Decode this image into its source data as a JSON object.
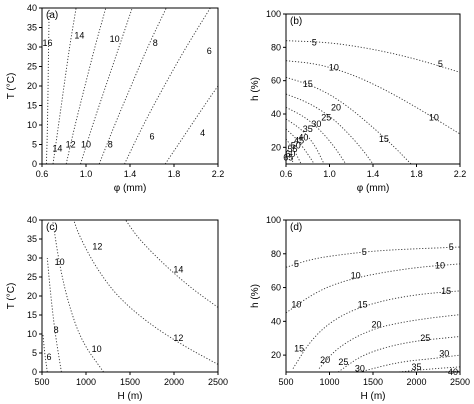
{
  "chart_data": [
    {
      "type": "contour",
      "panel_label": "(a)",
      "xlabel": "φ (mm)",
      "ylabel": "T (°C)",
      "xlim": [
        0.6,
        2.2
      ],
      "ylim": [
        0,
        40
      ],
      "xticks": [
        "0.6",
        "1.0",
        "1.4",
        "1.8",
        "2.2"
      ],
      "yticks": [
        "0",
        "5",
        "10",
        "15",
        "20",
        "25",
        "30",
        "35",
        "40"
      ],
      "contours": [
        {
          "level": "16",
          "points": [
            [
              0.64,
              0
            ],
            [
              0.65,
              10
            ],
            [
              0.655,
              20
            ],
            [
              0.66,
              30
            ],
            [
              0.665,
              40
            ]
          ],
          "label_at": [
            0.65,
            31
          ]
        },
        {
          "level": "14",
          "points": [
            [
              0.7,
              0
            ],
            [
              0.75,
              10
            ],
            [
              0.8,
              20
            ],
            [
              0.85,
              30
            ],
            [
              0.91,
              40
            ]
          ],
          "label_at": [
            0.74,
            4
          ]
        },
        {
          "level": "14",
          "points": [],
          "label_at": [
            0.94,
            33
          ]
        },
        {
          "level": "12",
          "points": [
            [
              0.82,
              0
            ],
            [
              0.9,
              10
            ],
            [
              0.99,
              20
            ],
            [
              1.08,
              30
            ],
            [
              1.18,
              40
            ]
          ],
          "label_at": [
            0.86,
            5
          ]
        },
        {
          "level": "10",
          "points": [
            [
              0.95,
              0
            ],
            [
              1.06,
              10
            ],
            [
              1.18,
              20
            ],
            [
              1.3,
              30
            ],
            [
              1.42,
              40
            ]
          ],
          "label_at": [
            1.0,
            5
          ]
        },
        {
          "level": "10",
          "points": [],
          "label_at": [
            1.26,
            32
          ]
        },
        {
          "level": "8",
          "points": [
            [
              1.12,
              0
            ],
            [
              1.26,
              10
            ],
            [
              1.41,
              20
            ],
            [
              1.56,
              30
            ],
            [
              1.73,
              40
            ]
          ],
          "label_at": [
            1.22,
            5
          ]
        },
        {
          "level": "8",
          "points": [],
          "label_at": [
            1.63,
            31
          ]
        },
        {
          "level": "6",
          "points": [
            [
              1.35,
              0
            ],
            [
              1.52,
              10
            ],
            [
              1.71,
              20
            ],
            [
              1.91,
              30
            ],
            [
              2.13,
              40
            ]
          ],
          "label_at": [
            1.6,
            7
          ]
        },
        {
          "level": "6",
          "points": [],
          "label_at": [
            2.12,
            29
          ]
        },
        {
          "level": "4",
          "points": [
            [
              1.72,
              0
            ],
            [
              1.91,
              8
            ],
            [
              2.1,
              16
            ],
            [
              2.2,
              20
            ]
          ],
          "label_at": [
            2.06,
            8
          ]
        }
      ]
    },
    {
      "type": "contour",
      "panel_label": "(b)",
      "xlabel": "φ (mm)",
      "ylabel": "h (%)",
      "xlim": [
        0.6,
        2.2
      ],
      "ylim": [
        10,
        100
      ],
      "xticks": [
        "0.6",
        "1.0",
        "1.4",
        "1.8",
        "2.2"
      ],
      "yticks": [
        "20",
        "40",
        "60",
        "80",
        "100"
      ],
      "contours": [
        {
          "level": "5",
          "points": [
            [
              0.6,
              84
            ],
            [
              1.0,
              83
            ],
            [
              1.4,
              79
            ],
            [
              1.8,
              73
            ],
            [
              2.2,
              65
            ]
          ],
          "label_at": [
            0.86,
            83
          ]
        },
        {
          "level": "5",
          "points": [],
          "label_at": [
            2.02,
            70
          ]
        },
        {
          "level": "10",
          "points": [
            [
              0.6,
              72
            ],
            [
              0.9,
              70
            ],
            [
              1.2,
              64
            ],
            [
              1.5,
              55
            ],
            [
              1.8,
              44
            ],
            [
              2.1,
              32
            ],
            [
              2.2,
              28
            ]
          ],
          "label_at": [
            1.04,
            68
          ]
        },
        {
          "level": "10",
          "points": [],
          "label_at": [
            1.96,
            38
          ]
        },
        {
          "level": "15",
          "points": [
            [
              0.6,
              62
            ],
            [
              0.8,
              58
            ],
            [
              1.0,
              52
            ],
            [
              1.2,
              43
            ],
            [
              1.4,
              32
            ],
            [
              1.6,
              20
            ],
            [
              1.75,
              10
            ]
          ],
          "label_at": [
            0.8,
            58
          ]
        },
        {
          "level": "15",
          "points": [],
          "label_at": [
            1.5,
            25
          ]
        },
        {
          "level": "20",
          "points": [
            [
              0.6,
              52
            ],
            [
              0.8,
              47
            ],
            [
              1.0,
              39
            ],
            [
              1.15,
              30
            ],
            [
              1.3,
              19
            ],
            [
              1.4,
              10
            ]
          ],
          "label_at": [
            1.06,
            44
          ]
        },
        {
          "level": "25",
          "points": [
            [
              0.6,
              44
            ],
            [
              0.78,
              38
            ],
            [
              0.92,
              30
            ],
            [
              1.05,
              20
            ],
            [
              1.15,
              10
            ]
          ],
          "label_at": [
            0.97,
            38
          ]
        },
        {
          "level": "30",
          "points": [
            [
              0.6,
              37
            ],
            [
              0.74,
              31
            ],
            [
              0.86,
              22
            ],
            [
              0.95,
              10
            ]
          ],
          "label_at": [
            0.88,
            34
          ]
        },
        {
          "level": "35",
          "points": [
            [
              0.6,
              31
            ],
            [
              0.7,
              25
            ],
            [
              0.8,
              16
            ],
            [
              0.86,
              10
            ]
          ],
          "label_at": [
            0.8,
            31
          ]
        },
        {
          "level": "40",
          "points": [
            [
              0.6,
              25
            ],
            [
              0.67,
              19
            ],
            [
              0.74,
              10
            ]
          ],
          "label_at": [
            0.76,
            26
          ]
        },
        {
          "level": "45",
          "points": [
            [
              0.6,
              20
            ],
            [
              0.64,
              15
            ],
            [
              0.67,
              10
            ]
          ],
          "label_at": [
            0.72,
            24
          ]
        },
        {
          "level": "50",
          "points": [],
          "label_at": [
            0.69,
            21
          ]
        },
        {
          "level": "55",
          "points": [],
          "label_at": [
            0.66,
            19
          ]
        },
        {
          "level": "60",
          "points": [],
          "label_at": [
            0.64,
            16
          ]
        },
        {
          "level": "65",
          "points": [],
          "label_at": [
            0.62,
            14
          ]
        }
      ]
    },
    {
      "type": "contour",
      "panel_label": "(c)",
      "xlabel": "H (m)",
      "ylabel": "T (°C)",
      "xlim": [
        500,
        2500
      ],
      "ylim": [
        0,
        40
      ],
      "xticks": [
        "500",
        "1000",
        "1500",
        "2000",
        "2500"
      ],
      "yticks": [
        "0",
        "5",
        "10",
        "15",
        "20",
        "25",
        "30",
        "35",
        "40"
      ],
      "contours": [
        {
          "level": "6",
          "points": [
            [
              560,
              0
            ],
            [
              530,
              5
            ],
            [
              510,
              10
            ]
          ],
          "label_at": [
            580,
            4
          ]
        },
        {
          "level": "8",
          "points": [
            [
              720,
              0
            ],
            [
              650,
              10
            ],
            [
              600,
              20
            ],
            [
              560,
              30
            ]
          ],
          "label_at": [
            660,
            11
          ]
        },
        {
          "level": "10",
          "points": [
            [
              1200,
              0
            ],
            [
              950,
              8
            ],
            [
              800,
              18
            ],
            [
              700,
              28
            ],
            [
              620,
              40
            ]
          ],
          "label_at": [
            1120,
            6
          ]
        },
        {
          "level": "10",
          "points": [],
          "label_at": [
            700,
            29
          ]
        },
        {
          "level": "12",
          "points": [
            [
              2500,
              2
            ],
            [
              2100,
              7
            ],
            [
              1700,
              13
            ],
            [
              1350,
              20
            ],
            [
              1100,
              28
            ],
            [
              920,
              36
            ],
            [
              860,
              40
            ]
          ],
          "label_at": [
            2050,
            9
          ]
        },
        {
          "level": "12",
          "points": [],
          "label_at": [
            1130,
            33
          ]
        },
        {
          "level": "14",
          "points": [
            [
              2500,
              17
            ],
            [
              2200,
              22
            ],
            [
              1900,
              28
            ],
            [
              1600,
              35
            ],
            [
              1450,
              40
            ]
          ],
          "label_at": [
            2050,
            27
          ]
        }
      ]
    },
    {
      "type": "contour",
      "panel_label": "(d)",
      "xlabel": "H (m)",
      "ylabel": "h (%)",
      "xlim": [
        500,
        2500
      ],
      "ylim": [
        10,
        100
      ],
      "xticks": [
        "500",
        "1000",
        "1500",
        "2000",
        "2500"
      ],
      "yticks": [
        "20",
        "40",
        "60",
        "80",
        "100"
      ],
      "contours": [
        {
          "level": "5",
          "points": [
            [
              500,
              72
            ],
            [
              800,
              77
            ],
            [
              1200,
              80
            ],
            [
              1600,
              82
            ],
            [
              2000,
              83
            ],
            [
              2500,
              84
            ]
          ],
          "label_at": [
            1400,
            81
          ]
        },
        {
          "level": "5",
          "points": [],
          "label_at": [
            620,
            74
          ]
        },
        {
          "level": "5",
          "points": [],
          "label_at": [
            2400,
            84
          ]
        },
        {
          "level": "10",
          "points": [
            [
              500,
              45
            ],
            [
              800,
              56
            ],
            [
              1100,
              63
            ],
            [
              1500,
              68
            ],
            [
              2000,
              72
            ],
            [
              2500,
              74
            ]
          ],
          "label_at": [
            1300,
            67
          ]
        },
        {
          "level": "10",
          "points": [],
          "label_at": [
            620,
            50
          ]
        },
        {
          "level": "10",
          "points": [],
          "label_at": [
            2270,
            73
          ]
        },
        {
          "level": "15",
          "points": [
            [
              580,
              12
            ],
            [
              800,
              30
            ],
            [
              1100,
              43
            ],
            [
              1500,
              51
            ],
            [
              2000,
              56
            ],
            [
              2500,
              58
            ]
          ],
          "label_at": [
            1380,
            50
          ]
        },
        {
          "level": "15",
          "points": [],
          "label_at": [
            650,
            24
          ]
        },
        {
          "level": "15",
          "points": [],
          "label_at": [
            2340,
            58
          ]
        },
        {
          "level": "20",
          "points": [
            [
              880,
              12
            ],
            [
              1100,
              25
            ],
            [
              1500,
              36
            ],
            [
              2000,
              41
            ],
            [
              2500,
              44
            ]
          ],
          "label_at": [
            1540,
            38
          ]
        },
        {
          "level": "20",
          "points": [],
          "label_at": [
            950,
            17
          ]
        },
        {
          "level": "25",
          "points": [
            [
              1100,
              10
            ],
            [
              1400,
              21
            ],
            [
              1900,
              28
            ],
            [
              2500,
              31
            ]
          ],
          "label_at": [
            2100,
            30
          ]
        },
        {
          "level": "25",
          "points": [],
          "label_at": [
            1160,
            16
          ]
        },
        {
          "level": "30",
          "points": [
            [
              1350,
              10
            ],
            [
              1800,
              16
            ],
            [
              2200,
              18
            ],
            [
              2500,
              20
            ]
          ],
          "label_at": [
            1350,
            12
          ]
        },
        {
          "level": "30",
          "points": [],
          "label_at": [
            2320,
            21
          ]
        },
        {
          "level": "35",
          "points": [
            [
              1800,
              10
            ],
            [
              2200,
              12
            ],
            [
              2500,
              13
            ]
          ],
          "label_at": [
            2000,
            13
          ]
        },
        {
          "level": "40",
          "points": [
            [
              2300,
              10
            ],
            [
              2500,
              10.5
            ]
          ],
          "label_at": [
            2420,
            10
          ]
        }
      ]
    }
  ]
}
